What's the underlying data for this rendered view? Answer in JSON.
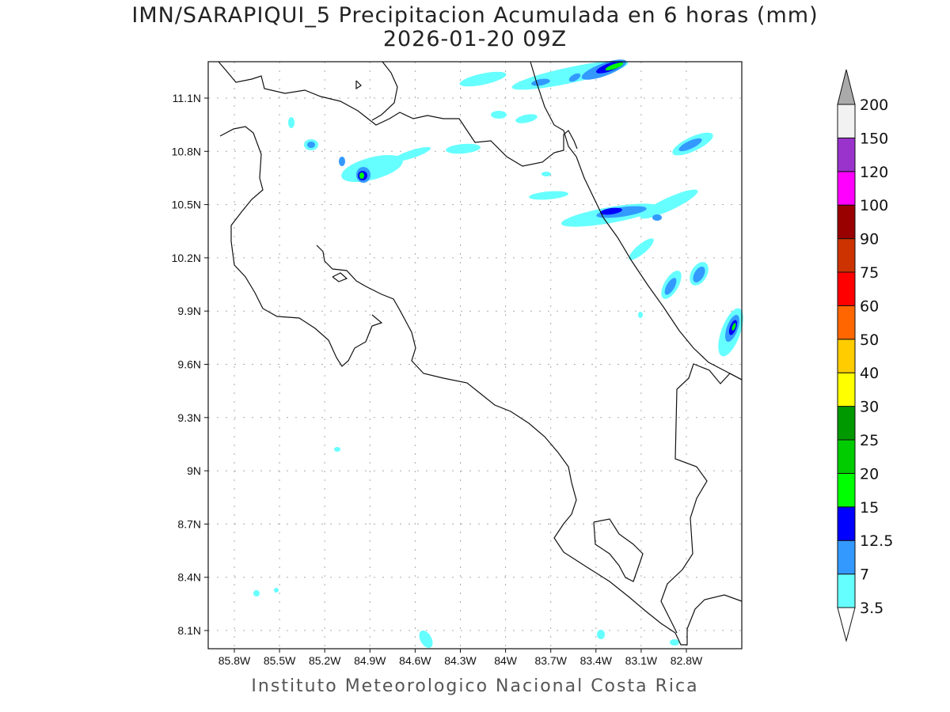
{
  "title": "IMN/SARAPIQUI_5 Precipitacion Acumulada en 6 horas (mm)",
  "subtitle": "2026-01-20 09Z",
  "footer": "Instituto Meteorologico Nacional Costa Rica",
  "map": {
    "lon_ticks": [
      "85.8W",
      "85.5W",
      "85.2W",
      "84.9W",
      "84.6W",
      "84.3W",
      "84W",
      "83.7W",
      "83.4W",
      "83.1W",
      "82.8W"
    ],
    "lat_ticks": [
      "11.1N",
      "10.8N",
      "10.5N",
      "10.2N",
      "9.9N",
      "9.6N",
      "9.3N",
      "9N",
      "8.7N",
      "8.4N",
      "8.1N"
    ],
    "grid": true
  },
  "colorbar": {
    "levels": [
      "3.5",
      "7",
      "12.5",
      "15",
      "20",
      "25",
      "30",
      "40",
      "50",
      "60",
      "75",
      "90",
      "100",
      "120",
      "150",
      "200"
    ],
    "colors": [
      "#66ffff",
      "#3399ff",
      "#0000ff",
      "#00ff00",
      "#00cc00",
      "#009900",
      "#ffff00",
      "#ffcc00",
      "#ff6600",
      "#ff0000",
      "#cc3300",
      "#990000",
      "#ff00ff",
      "#9933cc",
      "#f2f2f2"
    ],
    "over_color": "#aaaaaa",
    "under_color": "#ffffff"
  }
}
